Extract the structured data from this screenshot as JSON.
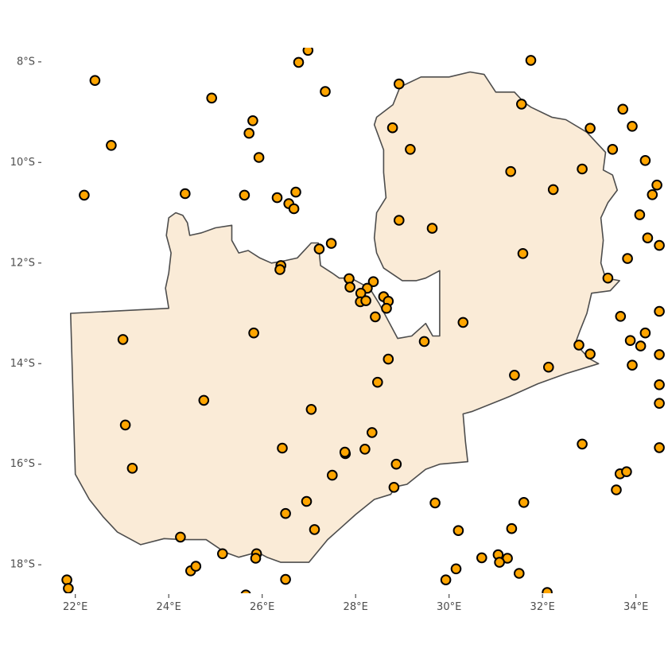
{
  "chart_data": {
    "type": "scatter",
    "title": "",
    "xlabel": "",
    "ylabel": "",
    "grid": false,
    "xlim": [
      21.75,
      34.55
    ],
    "ylim": [
      -18.55,
      -7.75
    ],
    "x_ticks": [
      {
        "value": 22,
        "label": "22°E"
      },
      {
        "value": 24,
        "label": "24°E"
      },
      {
        "value": 26,
        "label": "26°E"
      },
      {
        "value": 28,
        "label": "28°E"
      },
      {
        "value": 30,
        "label": "30°E"
      },
      {
        "value": 32,
        "label": "32°E"
      },
      {
        "value": 34,
        "label": "34°E"
      }
    ],
    "y_ticks": [
      {
        "value": -8,
        "label": "8°S"
      },
      {
        "value": -10,
        "label": "10°S"
      },
      {
        "value": -12,
        "label": "12°S"
      },
      {
        "value": -14,
        "label": "14°S"
      },
      {
        "value": -16,
        "label": "16°S"
      },
      {
        "value": -18,
        "label": "18°S"
      }
    ],
    "colors": {
      "country_fill": "#faebd7",
      "country_stroke": "#4d4d4d",
      "point_fill": "#ffa500",
      "point_stroke": "#000000"
    },
    "country_outline": [
      [
        21.9,
        -13.0
      ],
      [
        24.0,
        -12.9
      ],
      [
        23.93,
        -12.5
      ],
      [
        24.0,
        -12.2
      ],
      [
        24.05,
        -11.8
      ],
      [
        23.95,
        -11.45
      ],
      [
        24.0,
        -11.1
      ],
      [
        24.15,
        -11.0
      ],
      [
        24.3,
        -11.05
      ],
      [
        24.4,
        -11.2
      ],
      [
        24.45,
        -11.45
      ],
      [
        24.7,
        -11.4
      ],
      [
        25.0,
        -11.3
      ],
      [
        25.35,
        -11.25
      ],
      [
        25.35,
        -11.55
      ],
      [
        25.5,
        -11.8
      ],
      [
        25.7,
        -11.75
      ],
      [
        25.95,
        -11.9
      ],
      [
        26.2,
        -12.0
      ],
      [
        26.5,
        -11.95
      ],
      [
        26.75,
        -11.9
      ],
      [
        27.05,
        -11.6
      ],
      [
        27.2,
        -11.6
      ],
      [
        27.25,
        -12.05
      ],
      [
        27.5,
        -12.2
      ],
      [
        27.65,
        -12.3
      ],
      [
        27.9,
        -12.3
      ],
      [
        28.3,
        -12.5
      ],
      [
        28.5,
        -12.8
      ],
      [
        28.7,
        -13.15
      ],
      [
        28.9,
        -13.5
      ],
      [
        29.2,
        -13.45
      ],
      [
        29.5,
        -13.2
      ],
      [
        29.65,
        -13.45
      ],
      [
        29.8,
        -13.45
      ],
      [
        29.8,
        -12.15
      ],
      [
        29.5,
        -12.3
      ],
      [
        29.3,
        -12.35
      ],
      [
        29.0,
        -12.35
      ],
      [
        28.6,
        -12.1
      ],
      [
        28.45,
        -11.8
      ],
      [
        28.4,
        -11.5
      ],
      [
        28.45,
        -11.0
      ],
      [
        28.65,
        -10.7
      ],
      [
        28.6,
        -10.2
      ],
      [
        28.6,
        -9.75
      ],
      [
        28.4,
        -9.25
      ],
      [
        28.45,
        -9.1
      ],
      [
        28.8,
        -8.85
      ],
      [
        28.95,
        -8.5
      ],
      [
        29.4,
        -8.3
      ],
      [
        30.0,
        -8.3
      ],
      [
        30.45,
        -8.2
      ],
      [
        30.75,
        -8.25
      ],
      [
        31.0,
        -8.6
      ],
      [
        31.4,
        -8.6
      ],
      [
        31.6,
        -8.8
      ],
      [
        31.75,
        -8.9
      ],
      [
        32.2,
        -9.1
      ],
      [
        32.5,
        -9.15
      ],
      [
        32.95,
        -9.4
      ],
      [
        33.2,
        -9.65
      ],
      [
        33.35,
        -9.8
      ],
      [
        33.3,
        -10.15
      ],
      [
        33.5,
        -10.25
      ],
      [
        33.6,
        -10.55
      ],
      [
        33.4,
        -10.8
      ],
      [
        33.25,
        -11.1
      ],
      [
        33.3,
        -11.55
      ],
      [
        33.25,
        -12.0
      ],
      [
        33.35,
        -12.3
      ],
      [
        33.65,
        -12.35
      ],
      [
        33.45,
        -12.55
      ],
      [
        33.05,
        -12.6
      ],
      [
        32.95,
        -13.0
      ],
      [
        32.8,
        -13.35
      ],
      [
        32.7,
        -13.6
      ],
      [
        33.0,
        -13.9
      ],
      [
        33.2,
        -14.0
      ],
      [
        32.5,
        -14.2
      ],
      [
        31.9,
        -14.4
      ],
      [
        31.3,
        -14.65
      ],
      [
        30.5,
        -14.95
      ],
      [
        30.3,
        -15.0
      ],
      [
        30.35,
        -15.55
      ],
      [
        30.4,
        -15.95
      ],
      [
        29.8,
        -16.0
      ],
      [
        29.5,
        -16.1
      ],
      [
        29.1,
        -16.4
      ],
      [
        28.85,
        -16.45
      ],
      [
        28.75,
        -16.6
      ],
      [
        28.4,
        -16.7
      ],
      [
        28.0,
        -17.0
      ],
      [
        27.7,
        -17.25
      ],
      [
        27.4,
        -17.5
      ],
      [
        27.0,
        -17.95
      ],
      [
        26.7,
        -17.95
      ],
      [
        26.4,
        -17.95
      ],
      [
        26.1,
        -17.85
      ],
      [
        25.9,
        -17.75
      ],
      [
        25.5,
        -17.85
      ],
      [
        25.2,
        -17.75
      ],
      [
        24.8,
        -17.5
      ],
      [
        24.3,
        -17.5
      ],
      [
        23.9,
        -17.48
      ],
      [
        23.4,
        -17.6
      ],
      [
        22.9,
        -17.35
      ],
      [
        22.6,
        -17.05
      ],
      [
        22.3,
        -16.7
      ],
      [
        22.0,
        -16.2
      ],
      [
        21.9,
        -13.0
      ]
    ],
    "points": [
      [
        26.98,
        -7.77
      ],
      [
        26.78,
        -8.01
      ],
      [
        31.75,
        -7.97
      ],
      [
        22.42,
        -8.37
      ],
      [
        24.92,
        -8.72
      ],
      [
        27.35,
        -8.59
      ],
      [
        28.93,
        -8.44
      ],
      [
        31.55,
        -8.84
      ],
      [
        33.72,
        -8.94
      ],
      [
        33.02,
        -9.32
      ],
      [
        33.92,
        -9.28
      ],
      [
        25.8,
        -9.17
      ],
      [
        25.72,
        -9.42
      ],
      [
        28.79,
        -9.31
      ],
      [
        22.77,
        -9.66
      ],
      [
        25.93,
        -9.9
      ],
      [
        29.17,
        -9.74
      ],
      [
        33.5,
        -9.74
      ],
      [
        34.2,
        -9.96
      ],
      [
        31.32,
        -10.18
      ],
      [
        32.85,
        -10.13
      ],
      [
        22.19,
        -10.65
      ],
      [
        24.35,
        -10.62
      ],
      [
        25.62,
        -10.65
      ],
      [
        26.32,
        -10.7
      ],
      [
        26.72,
        -10.59
      ],
      [
        26.57,
        -10.82
      ],
      [
        26.68,
        -10.92
      ],
      [
        32.23,
        -10.54
      ],
      [
        34.45,
        -10.45
      ],
      [
        34.35,
        -10.64
      ],
      [
        34.08,
        -11.04
      ],
      [
        28.93,
        -11.15
      ],
      [
        29.64,
        -11.31
      ],
      [
        34.25,
        -11.5
      ],
      [
        34.5,
        -11.65
      ],
      [
        27.22,
        -11.72
      ],
      [
        27.48,
        -11.61
      ],
      [
        31.58,
        -11.81
      ],
      [
        33.82,
        -11.91
      ],
      [
        26.4,
        -12.05
      ],
      [
        26.38,
        -12.13
      ],
      [
        33.4,
        -12.3
      ],
      [
        27.86,
        -12.31
      ],
      [
        27.88,
        -12.48
      ],
      [
        28.38,
        -12.37
      ],
      [
        28.25,
        -12.5
      ],
      [
        28.11,
        -12.6
      ],
      [
        28.6,
        -12.67
      ],
      [
        28.7,
        -12.76
      ],
      [
        28.1,
        -12.77
      ],
      [
        28.22,
        -12.75
      ],
      [
        28.66,
        -12.9
      ],
      [
        28.42,
        -13.07
      ],
      [
        34.5,
        -12.96
      ],
      [
        23.02,
        -13.52
      ],
      [
        25.82,
        -13.39
      ],
      [
        29.47,
        -13.56
      ],
      [
        30.3,
        -13.18
      ],
      [
        33.67,
        -13.06
      ],
      [
        34.2,
        -13.39
      ],
      [
        33.88,
        -13.54
      ],
      [
        34.1,
        -13.65
      ],
      [
        32.78,
        -13.63
      ],
      [
        33.02,
        -13.81
      ],
      [
        34.5,
        -13.82
      ],
      [
        28.7,
        -13.91
      ],
      [
        31.4,
        -14.23
      ],
      [
        32.13,
        -14.07
      ],
      [
        33.92,
        -14.03
      ],
      [
        24.75,
        -14.73
      ],
      [
        27.05,
        -14.91
      ],
      [
        28.47,
        -14.37
      ],
      [
        34.5,
        -14.42
      ],
      [
        23.07,
        -15.22
      ],
      [
        26.43,
        -15.68
      ],
      [
        27.78,
        -15.79
      ],
      [
        27.77,
        -15.76
      ],
      [
        28.2,
        -15.7
      ],
      [
        28.35,
        -15.37
      ],
      [
        34.5,
        -14.79
      ],
      [
        23.22,
        -16.08
      ],
      [
        27.5,
        -16.22
      ],
      [
        28.87,
        -16.0
      ],
      [
        32.85,
        -15.6
      ],
      [
        33.66,
        -16.19
      ],
      [
        33.8,
        -16.15
      ],
      [
        34.5,
        -15.67
      ],
      [
        26.95,
        -16.74
      ],
      [
        28.82,
        -16.46
      ],
      [
        29.7,
        -16.77
      ],
      [
        31.6,
        -16.76
      ],
      [
        33.58,
        -16.51
      ],
      [
        26.5,
        -16.98
      ],
      [
        24.25,
        -17.45
      ],
      [
        27.12,
        -17.3
      ],
      [
        30.2,
        -17.32
      ],
      [
        31.34,
        -17.28
      ],
      [
        25.15,
        -17.78
      ],
      [
        25.88,
        -17.78
      ],
      [
        25.86,
        -17.87
      ],
      [
        30.7,
        -17.86
      ],
      [
        31.05,
        -17.8
      ],
      [
        31.25,
        -17.87
      ],
      [
        31.08,
        -17.95
      ],
      [
        24.47,
        -18.12
      ],
      [
        24.58,
        -18.03
      ],
      [
        30.15,
        -18.08
      ],
      [
        31.5,
        -18.17
      ],
      [
        26.5,
        -18.29
      ],
      [
        29.93,
        -18.3
      ],
      [
        21.82,
        -18.3
      ],
      [
        21.85,
        -18.47
      ],
      [
        25.65,
        -18.6
      ],
      [
        32.1,
        -18.55
      ]
    ]
  }
}
